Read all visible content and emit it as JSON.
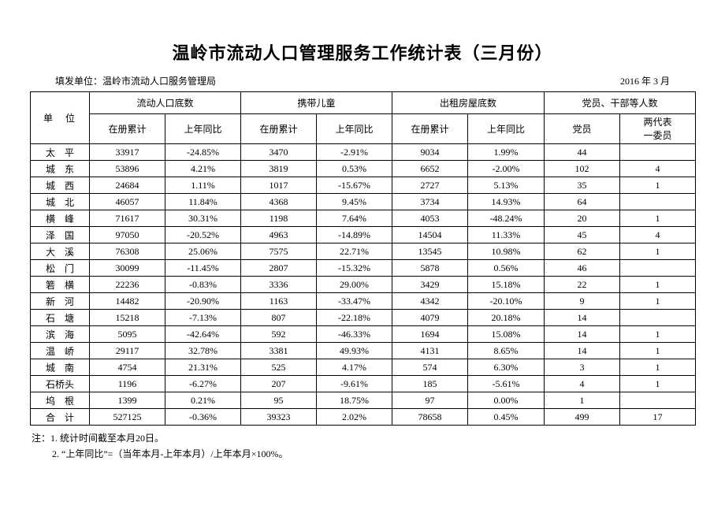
{
  "page": {
    "title": "温岭市流动人口管理服务工作统计表（三月份）",
    "issuer_label": "填发单位：温岭市流动人口服务管理局",
    "date_label": "2016 年 3 月",
    "notes": [
      "注：1. 统计时间截至本月20日。",
      "2. “上年同比”=（当年本月-上年本月）/上年本月×100%。"
    ]
  },
  "table": {
    "header": {
      "unit": "单　位",
      "groups": [
        {
          "label": "流动人口底数",
          "sub": [
            "在册累计",
            "上年同比"
          ]
        },
        {
          "label": "携带儿童",
          "sub": [
            "在册累计",
            "上年同比"
          ]
        },
        {
          "label": "出租房屋底数",
          "sub": [
            "在册累计",
            "上年同比"
          ]
        },
        {
          "label": "党员、干部等人数",
          "sub": [
            "党员",
            "两代表\n一委员"
          ]
        }
      ]
    },
    "rows": [
      {
        "unit": "太　平",
        "cells": [
          "33917",
          "-24.85%",
          "3470",
          "-2.91%",
          "9034",
          "1.99%",
          "44",
          ""
        ]
      },
      {
        "unit": "城　东",
        "cells": [
          "53896",
          "4.21%",
          "3819",
          "0.53%",
          "6652",
          "-2.00%",
          "102",
          "4"
        ]
      },
      {
        "unit": "城　西",
        "cells": [
          "24684",
          "1.11%",
          "1017",
          "-15.67%",
          "2727",
          "5.13%",
          "35",
          "1"
        ]
      },
      {
        "unit": "城　北",
        "cells": [
          "46057",
          "11.84%",
          "4368",
          "9.45%",
          "3734",
          "14.93%",
          "64",
          ""
        ]
      },
      {
        "unit": "横　峰",
        "cells": [
          "71617",
          "30.31%",
          "1198",
          "7.64%",
          "4053",
          "-48.24%",
          "20",
          "1"
        ]
      },
      {
        "unit": "泽　国",
        "cells": [
          "97050",
          "-20.52%",
          "4963",
          "-14.89%",
          "14504",
          "11.33%",
          "45",
          "4"
        ]
      },
      {
        "unit": "大　溪",
        "cells": [
          "76308",
          "25.06%",
          "7575",
          "22.71%",
          "13545",
          "10.98%",
          "62",
          "1"
        ]
      },
      {
        "unit": "松　门",
        "cells": [
          "30099",
          "-11.45%",
          "2807",
          "-15.32%",
          "5878",
          "0.56%",
          "46",
          ""
        ]
      },
      {
        "unit": "箬　横",
        "cells": [
          "22236",
          "-0.83%",
          "3336",
          "29.00%",
          "3429",
          "15.18%",
          "22",
          "1"
        ]
      },
      {
        "unit": "新　河",
        "cells": [
          "14482",
          "-20.90%",
          "1163",
          "-33.47%",
          "4342",
          "-20.10%",
          "9",
          "1"
        ]
      },
      {
        "unit": "石　塘",
        "cells": [
          "15218",
          "-7.13%",
          "807",
          "-22.18%",
          "4079",
          "20.18%",
          "14",
          ""
        ]
      },
      {
        "unit": "滨　海",
        "cells": [
          "5095",
          "-42.64%",
          "592",
          "-46.33%",
          "1694",
          "15.08%",
          "14",
          "1"
        ]
      },
      {
        "unit": "温　峤",
        "cells": [
          "29117",
          "32.78%",
          "3381",
          "49.93%",
          "4131",
          "8.65%",
          "14",
          "1"
        ]
      },
      {
        "unit": "城　南",
        "cells": [
          "4754",
          "21.31%",
          "525",
          "4.17%",
          "574",
          "6.30%",
          "3",
          "1"
        ]
      },
      {
        "unit": "石桥头",
        "cells": [
          "1196",
          "-6.27%",
          "207",
          "-9.61%",
          "185",
          "-5.61%",
          "4",
          "1"
        ]
      },
      {
        "unit": "坞　根",
        "cells": [
          "1399",
          "0.21%",
          "95",
          "18.75%",
          "97",
          "0.00%",
          "1",
          ""
        ]
      },
      {
        "unit": "合　计",
        "cells": [
          "527125",
          "-0.36%",
          "39323",
          "2.02%",
          "78658",
          "0.45%",
          "499",
          "17"
        ]
      }
    ]
  }
}
